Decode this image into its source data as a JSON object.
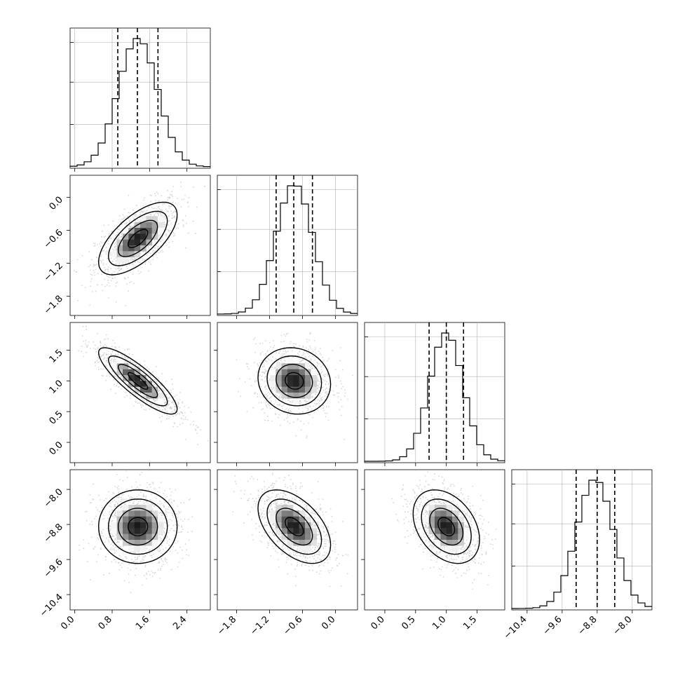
{
  "chart_data": {
    "type": "corner",
    "title": "",
    "n_params": 4,
    "params": [
      {
        "label": "",
        "range": [
          -0.1,
          2.9
        ],
        "ticks": [
          0.0,
          0.8,
          1.6,
          2.4
        ],
        "tick_labels": [
          "0.0",
          "0.8",
          "1.6",
          "2.4"
        ],
        "mean": 1.35,
        "sd": 0.42
      },
      {
        "label": "",
        "range": [
          -2.15,
          0.4
        ],
        "ticks": [
          -1.8,
          -1.2,
          -0.6,
          0.0
        ],
        "tick_labels": [
          "−1.8",
          "−1.2",
          "−0.6",
          "0.0"
        ],
        "mean": -0.75,
        "sd": 0.33
      },
      {
        "label": "",
        "range": [
          -0.33,
          1.95
        ],
        "ticks": [
          0.0,
          0.5,
          1.0,
          1.5
        ],
        "tick_labels": [
          "0.0",
          "0.5",
          "1.0",
          "1.5"
        ],
        "mean": 1.0,
        "sd": 0.27
      },
      {
        "label": "",
        "range": [
          -10.75,
          -7.55
        ],
        "ticks": [
          -10.4,
          -9.6,
          -8.8,
          -8.0
        ],
        "tick_labels": [
          "−10.4",
          "−9.6",
          "−8.8",
          "−8.0"
        ],
        "mean": -8.85,
        "sd": 0.42
      }
    ],
    "diagonal_histograms": [
      {
        "param": 0,
        "quantiles": [
          0.92,
          1.34,
          1.78
        ]
      },
      {
        "param": 1,
        "quantiles": [
          -1.08,
          -0.76,
          -0.42
        ]
      },
      {
        "param": 2,
        "quantiles": [
          0.72,
          1.0,
          1.28
        ]
      },
      {
        "param": 3,
        "quantiles": [
          -9.28,
          -8.8,
          -8.4
        ]
      }
    ],
    "pair_correlations": {
      "1-0": 0.65,
      "2-0": -0.85,
      "2-1": -0.1,
      "3-0": 0.0,
      "3-1": -0.5,
      "3-2": -0.35
    },
    "contour_levels_sigma": [
      0.5,
      1.0,
      1.5,
      2.0
    ],
    "grid": true,
    "colors": {
      "hist": "#000000",
      "contour": "#000000",
      "points": "#888888",
      "grid": "#b0b0b0"
    }
  }
}
